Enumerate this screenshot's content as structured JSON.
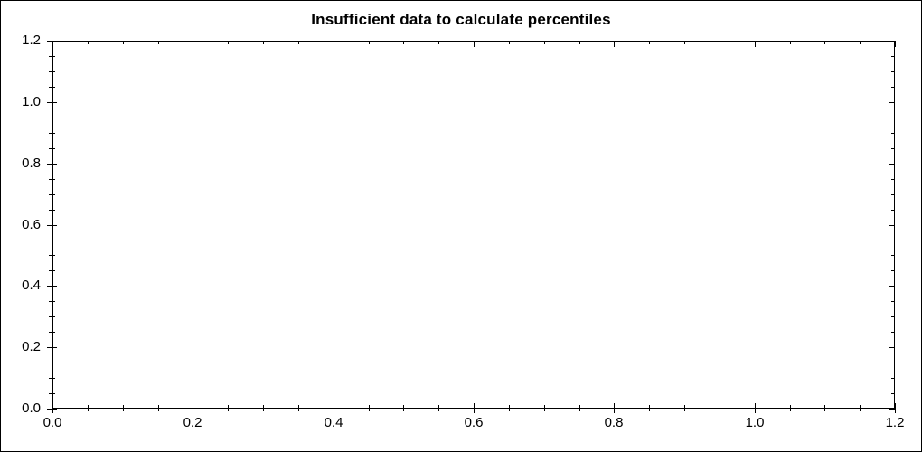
{
  "window": {
    "background": "#ffffff",
    "border_color": "#000000"
  },
  "chart_data": {
    "type": "line",
    "title": "Insufficient data to calculate percentiles",
    "series": [],
    "grid": false,
    "legend": null,
    "plot_background": "#ffffff",
    "axis_color": "#000000",
    "text_color": "#000000",
    "x_axis": {
      "label": "",
      "min": 0.0,
      "max": 1.2,
      "major_ticks": [
        0.0,
        0.2,
        0.4,
        0.6,
        0.8,
        1.0,
        1.2
      ],
      "tick_labels": [
        "0.0",
        "0.2",
        "0.4",
        "0.6",
        "0.8",
        "1.0",
        "1.2"
      ],
      "minor_tick_step": 0.05
    },
    "y_axis": {
      "label": "",
      "min": 0.0,
      "max": 1.2,
      "major_ticks": [
        0.0,
        0.2,
        0.4,
        0.6,
        0.8,
        1.0,
        1.2
      ],
      "tick_labels": [
        "0.0",
        "0.2",
        "0.4",
        "0.6",
        "0.8",
        "1.0",
        "1.2"
      ],
      "minor_tick_step": 0.05
    }
  }
}
